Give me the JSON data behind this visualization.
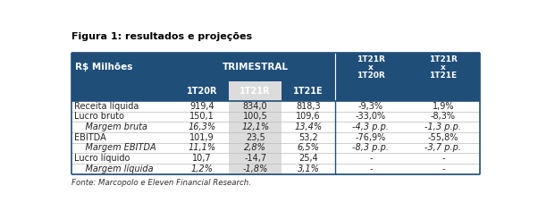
{
  "title": "Figura 1: resultados e projeções",
  "footer": "Fonte: Marcopolo e Eleven Financial Research.",
  "header_bg_color": "#1F4E79",
  "highlight_col_bg": "#DCDCDC",
  "border_color": "#1F4E79",
  "divider_color": "#AAAAAA",
  "col_boundaries": [
    0.0,
    0.255,
    0.385,
    0.515,
    0.645,
    0.82,
    1.0
  ],
  "col_headers_row2": [
    "1T20R",
    "1T21R",
    "1T21E"
  ],
  "ratio_headers": [
    [
      "1T21R",
      "x",
      "1T20R"
    ],
    [
      "1T21R",
      "x",
      "1T21E"
    ]
  ],
  "rows": [
    {
      "label": "Receita líquida",
      "indent": false,
      "italic": false,
      "values": [
        "919,4",
        "834,0",
        "818,3",
        "-9,3%",
        "1,9%"
      ]
    },
    {
      "label": "Lucro bruto",
      "indent": false,
      "italic": false,
      "values": [
        "150,1",
        "100,5",
        "109,6",
        "-33,0%",
        "-8,3%"
      ]
    },
    {
      "label": "Margem bruta",
      "indent": true,
      "italic": true,
      "values": [
        "16,3%",
        "12,1%",
        "13,4%",
        "-4,3 p.p.",
        "-1,3 p.p."
      ]
    },
    {
      "label": "EBITDA",
      "indent": false,
      "italic": false,
      "values": [
        "101,9",
        "23,5",
        "53,2",
        "-76,9%",
        "-55,8%"
      ]
    },
    {
      "label": "Margem EBITDA",
      "indent": true,
      "italic": true,
      "values": [
        "11,1%",
        "2,8%",
        "6,5%",
        "-8,3 p.p.",
        "-3,7 p.p."
      ]
    },
    {
      "label": "Lucro líquido",
      "indent": false,
      "italic": false,
      "values": [
        "10,7",
        "-14,7",
        "25,4",
        "-",
        "-"
      ]
    },
    {
      "label": "Margem líquida",
      "indent": true,
      "italic": true,
      "values": [
        "1,2%",
        "-1,8%",
        "3,1%",
        "-",
        "-"
      ]
    }
  ]
}
